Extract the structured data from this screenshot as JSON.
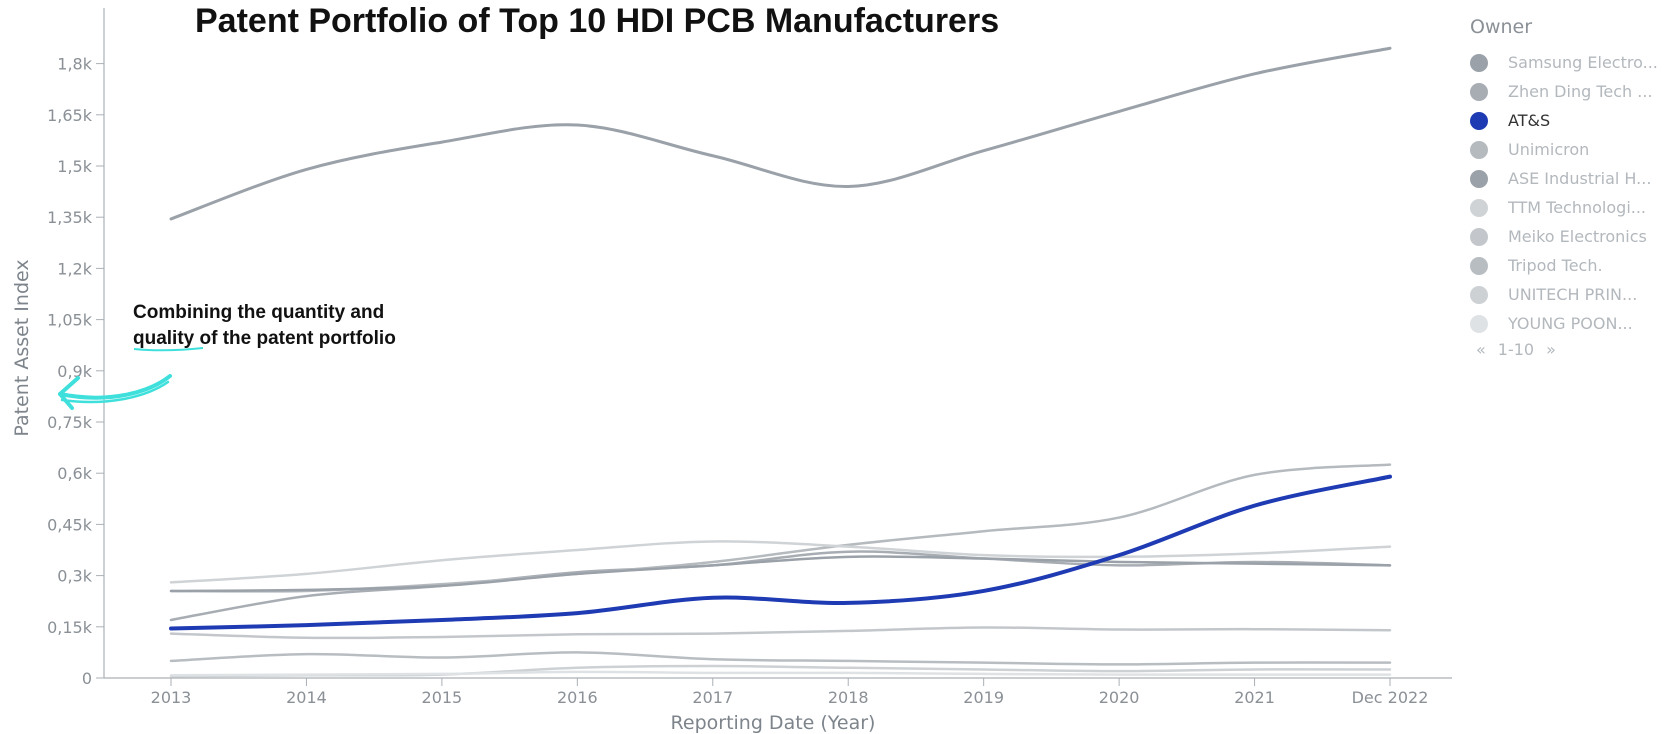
{
  "title": "Patent Portfolio of Top 10 HDI PCB Manufacturers",
  "annotation": {
    "line1": "Combining the quantity and",
    "line2": "quality of the patent portfolio"
  },
  "legend": {
    "title": "Owner",
    "items": [
      {
        "label": "Samsung Electro...",
        "color": "#9aa1a8"
      },
      {
        "label": "Zhen Ding Tech ...",
        "color": "#a7adb3"
      },
      {
        "label": "AT&S",
        "color": "#1f3bb3"
      },
      {
        "label": "Unimicron",
        "color": "#b5babf"
      },
      {
        "label": "ASE Industrial H...",
        "color": "#9aa1a8"
      },
      {
        "label": "TTM Technologi...",
        "color": "#cfd3d6"
      },
      {
        "label": "Meiko Electronics",
        "color": "#c3c7cb"
      },
      {
        "label": "Tripod Tech.",
        "color": "#b8bdc2"
      },
      {
        "label": "UNITECH PRIN...",
        "color": "#cdd1d4"
      },
      {
        "label": "YOUNG POON...",
        "color": "#dfe2e4"
      }
    ],
    "pager": {
      "prev": "«",
      "range": "1-10",
      "next": "»"
    }
  },
  "chart_data": {
    "type": "line",
    "title": "Patent Portfolio of Top 10 HDI PCB Manufacturers",
    "xlabel": "Reporting Date (Year)",
    "ylabel": "Patent Asset Index",
    "categories": [
      "2013",
      "2014",
      "2015",
      "2016",
      "2017",
      "2018",
      "2019",
      "2020",
      "2021",
      "Dec 2022"
    ],
    "y_ticks": [
      "0",
      "0,15k",
      "0,3k",
      "0,45k",
      "0,6k",
      "0,75k",
      "0,9k",
      "1,05k",
      "1,2k",
      "1,35k",
      "1,5k",
      "1,65k",
      "1,8k"
    ],
    "ylim": [
      0,
      1875
    ],
    "series": [
      {
        "name": "Samsung Electro...",
        "color": "#9aa1a8",
        "width": 3,
        "values": [
          1345,
          1490,
          1570,
          1620,
          1530,
          1440,
          1545,
          1660,
          1770,
          1845
        ]
      },
      {
        "name": "Zhen Ding Tech ...",
        "color": "#a7adb3",
        "width": 2.5,
        "values": [
          170,
          240,
          270,
          310,
          330,
          370,
          350,
          330,
          340,
          330
        ]
      },
      {
        "name": "Unimicron",
        "color": "#b5babf",
        "width": 2.5,
        "values": [
          255,
          255,
          275,
          305,
          340,
          390,
          430,
          470,
          595,
          625
        ]
      },
      {
        "name": "ASE Industrial H...",
        "color": "#9aa1a8",
        "width": 2.5,
        "values": [
          255,
          258,
          270,
          305,
          330,
          355,
          350,
          340,
          335,
          330
        ]
      },
      {
        "name": "TTM Technologi...",
        "color": "#cfd3d6",
        "width": 2.5,
        "values": [
          280,
          305,
          345,
          375,
          400,
          385,
          360,
          355,
          365,
          385
        ]
      },
      {
        "name": "Meiko Electronics",
        "color": "#c3c7cb",
        "width": 2.5,
        "values": [
          130,
          118,
          120,
          128,
          130,
          138,
          148,
          142,
          143,
          140
        ]
      },
      {
        "name": "Tripod Tech.",
        "color": "#b8bdc2",
        "width": 2.5,
        "values": [
          50,
          70,
          60,
          75,
          55,
          50,
          45,
          40,
          45,
          45
        ]
      },
      {
        "name": "UNITECH PRIN...",
        "color": "#cdd1d4",
        "width": 2.5,
        "values": [
          5,
          8,
          10,
          30,
          35,
          30,
          25,
          20,
          25,
          25
        ]
      },
      {
        "name": "YOUNG POON...",
        "color": "#dfe2e4",
        "width": 2.5,
        "values": [
          8,
          10,
          12,
          18,
          15,
          15,
          12,
          10,
          10,
          10
        ]
      },
      {
        "name": "AT&S",
        "color": "#1f3bb3",
        "width": 4,
        "values": [
          145,
          155,
          170,
          190,
          235,
          220,
          255,
          360,
          505,
          590
        ]
      }
    ]
  }
}
